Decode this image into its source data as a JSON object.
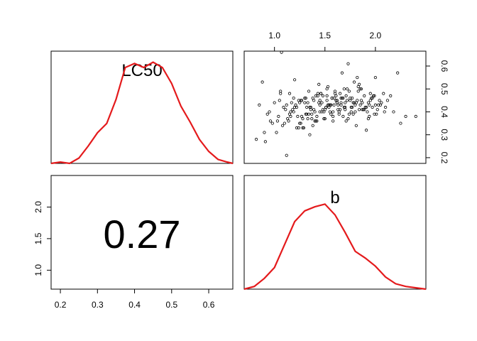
{
  "chart_data": {
    "type": "scatter",
    "kind": "pairs-matrix",
    "density_color": "#e41a1c",
    "variables": [
      {
        "name": "LC50",
        "range": [
          0.175,
          0.665
        ],
        "ticks": [
          0.2,
          0.3,
          0.4,
          0.5,
          0.6
        ]
      },
      {
        "name": "b",
        "range": [
          0.7,
          2.5
        ],
        "ticks": [
          1.0,
          1.5,
          2.0
        ]
      }
    ],
    "correlation": {
      "label": "0.27",
      "value": 0.27
    },
    "density_LC50": {
      "x": [
        0.175,
        0.2,
        0.225,
        0.25,
        0.275,
        0.3,
        0.325,
        0.35,
        0.375,
        0.4,
        0.425,
        0.45,
        0.475,
        0.5,
        0.525,
        0.55,
        0.575,
        0.6,
        0.625,
        0.65,
        0.665
      ],
      "y": [
        0.0,
        0.01,
        0.0,
        0.04,
        0.13,
        0.23,
        0.3,
        0.48,
        0.72,
        0.75,
        0.72,
        0.76,
        0.72,
        0.6,
        0.43,
        0.31,
        0.18,
        0.09,
        0.03,
        0.01,
        0.0
      ]
    },
    "density_b": {
      "x": [
        0.7,
        0.8,
        0.9,
        1.0,
        1.1,
        1.2,
        1.3,
        1.4,
        1.5,
        1.6,
        1.7,
        1.8,
        1.9,
        2.0,
        2.1,
        2.2,
        2.3,
        2.4,
        2.5
      ],
      "y": [
        0.0,
        0.02,
        0.08,
        0.16,
        0.33,
        0.5,
        0.58,
        0.61,
        0.63,
        0.55,
        0.42,
        0.28,
        0.23,
        0.17,
        0.09,
        0.04,
        0.02,
        0.01,
        0.0
      ]
    },
    "scatter": {
      "x_var": "b",
      "y_var": "LC50",
      "x": [
        0.82,
        0.88,
        0.91,
        0.96,
        1.07,
        1.12,
        1.3,
        1.52,
        1.67,
        1.73,
        2.0,
        2.22,
        2.4,
        0.85,
        0.95,
        1.02,
        1.05,
        1.1,
        1.15,
        1.18,
        1.22,
        1.25,
        1.28,
        1.32,
        1.35,
        1.38,
        1.42,
        1.45,
        1.48,
        1.55,
        1.58,
        1.62,
        1.65,
        1.7,
        1.78,
        1.82,
        1.88,
        1.93,
        1.97,
        2.05,
        2.15,
        0.98,
        1.04,
        1.09,
        1.14,
        1.19,
        1.24,
        1.29,
        1.34,
        1.39,
        1.44,
        1.49,
        1.54,
        1.59,
        1.64,
        1.69,
        1.74,
        1.79,
        1.84,
        1.89,
        1.94,
        1.99,
        2.04,
        2.1,
        1.0,
        1.08,
        1.16,
        1.21,
        1.27,
        1.31,
        1.36,
        1.41,
        1.46,
        1.51,
        1.56,
        1.61,
        1.66,
        1.71,
        1.76,
        1.81,
        1.86,
        1.91,
        1.96,
        2.02,
        2.08,
        0.93,
        1.06,
        1.13,
        1.2,
        1.26,
        1.33,
        1.37,
        1.43,
        1.47,
        1.53,
        1.57,
        1.63,
        1.68,
        1.72,
        1.77,
        1.83,
        1.87,
        1.92,
        1.98,
        2.03,
        2.12,
        2.25,
        1.11,
        1.17,
        1.23,
        1.3,
        1.35,
        1.4,
        1.45,
        1.5,
        1.55,
        1.6,
        1.65,
        1.7,
        1.75,
        1.8,
        1.85,
        1.9,
        1.95,
        2.0,
        0.9,
        1.03,
        1.19,
        1.28,
        1.34,
        1.42,
        1.48,
        1.53,
        1.58,
        1.62,
        1.67,
        1.74,
        1.79,
        1.86,
        1.94,
        2.06,
        2.18,
        1.15,
        1.25,
        1.33,
        1.39,
        1.44,
        1.49,
        1.56,
        1.61,
        1.66,
        1.71,
        1.76,
        1.82,
        1.89,
        1.24,
        1.37,
        1.46,
        1.52,
        1.59,
        1.64,
        1.69,
        1.78,
        1.84,
        1.97,
        2.09,
        2.3,
        1.2,
        1.32,
        1.41,
        1.5,
        1.57,
        1.63,
        1.73,
        1.81,
        1.91,
        1.06,
        1.16,
        1.27,
        1.36,
        1.43,
        1.51,
        1.58,
        1.68,
        1.75,
        1.83,
        1.99,
        1.12,
        1.22,
        1.31,
        1.4,
        1.47,
        1.54,
        1.6,
        1.66,
        1.72,
        1.8,
        1.87,
        1.95,
        2.01,
        1.26,
        1.38,
        1.45,
        1.52,
        1.62,
        1.7,
        1.77,
        1.85,
        1.93
      ],
      "y": [
        0.28,
        0.53,
        0.27,
        0.36,
        0.66,
        0.21,
        0.44,
        0.5,
        0.57,
        0.61,
        0.55,
        0.57,
        0.38,
        0.43,
        0.4,
        0.31,
        0.45,
        0.35,
        0.39,
        0.41,
        0.33,
        0.44,
        0.37,
        0.42,
        0.3,
        0.46,
        0.38,
        0.43,
        0.47,
        0.4,
        0.36,
        0.44,
        0.48,
        0.42,
        0.39,
        0.45,
        0.41,
        0.37,
        0.46,
        0.43,
        0.47,
        0.35,
        0.38,
        0.42,
        0.36,
        0.4,
        0.45,
        0.33,
        0.39,
        0.41,
        0.44,
        0.37,
        0.43,
        0.46,
        0.4,
        0.42,
        0.49,
        0.44,
        0.41,
        0.47,
        0.43,
        0.39,
        0.45,
        0.42,
        0.44,
        0.34,
        0.4,
        0.43,
        0.38,
        0.46,
        0.41,
        0.36,
        0.48,
        0.42,
        0.39,
        0.45,
        0.43,
        0.47,
        0.4,
        0.44,
        0.5,
        0.42,
        0.46,
        0.41,
        0.48,
        0.39,
        0.48,
        0.37,
        0.42,
        0.35,
        0.44,
        0.39,
        0.47,
        0.4,
        0.43,
        0.46,
        0.41,
        0.38,
        0.45,
        0.42,
        0.49,
        0.44,
        0.4,
        0.47,
        0.43,
        0.45,
        0.35,
        0.41,
        0.44,
        0.38,
        0.46,
        0.42,
        0.4,
        0.45,
        0.37,
        0.43,
        0.48,
        0.41,
        0.44,
        0.46,
        0.4,
        0.5,
        0.42,
        0.45,
        0.43,
        0.31,
        0.36,
        0.46,
        0.33,
        0.49,
        0.36,
        0.41,
        0.51,
        0.38,
        0.44,
        0.46,
        0.39,
        0.53,
        0.45,
        0.38,
        0.44,
        0.4,
        0.48,
        0.35,
        0.37,
        0.45,
        0.52,
        0.4,
        0.43,
        0.47,
        0.44,
        0.36,
        0.42,
        0.55,
        0.41,
        0.33,
        0.37,
        0.48,
        0.45,
        0.43,
        0.39,
        0.5,
        0.44,
        0.52,
        0.42,
        0.4,
        0.38,
        0.54,
        0.39,
        0.47,
        0.41,
        0.46,
        0.43,
        0.37,
        0.34,
        0.32,
        0.49,
        0.38,
        0.45,
        0.42,
        0.48,
        0.42,
        0.4,
        0.46,
        0.45,
        0.51,
        0.47,
        0.43,
        0.42,
        0.39,
        0.36,
        0.44,
        0.42,
        0.49,
        0.46,
        0.5,
        0.43,
        0.41,
        0.48,
        0.39,
        0.45,
        0.34,
        0.4,
        0.47,
        0.45,
        0.41,
        0.46,
        0.43,
        0.44
      ]
    }
  }
}
